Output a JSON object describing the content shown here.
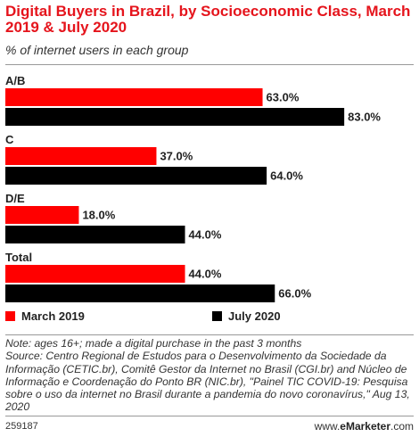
{
  "header": {
    "title": "Digital Buyers in Brazil, by Socioeconomic Class, March 2019 & July 2020",
    "subtitle": "% of internet users in each group"
  },
  "chart_data": {
    "type": "bar",
    "orientation": "horizontal",
    "categories": [
      "A/B",
      "C",
      "D/E",
      "Total"
    ],
    "series": [
      {
        "name": "March 2019",
        "values": [
          63.0,
          37.0,
          18.0,
          44.0
        ],
        "color": "#ff0000"
      },
      {
        "name": "July 2020",
        "values": [
          83.0,
          64.0,
          44.0,
          66.0
        ],
        "color": "#000000"
      }
    ],
    "data_labels": [
      [
        "63.0%",
        "37.0%",
        "18.0%",
        "44.0%"
      ],
      [
        "83.0%",
        "64.0%",
        "44.0%",
        "66.0%"
      ]
    ],
    "xlim": [
      0,
      100
    ],
    "grid": false,
    "legend_position": "bottom"
  },
  "legend": {
    "march_label": "March 2019",
    "july_label": "July 2020"
  },
  "footer": {
    "note_line": "Note: ages 16+; made a digital purchase in the past 3 months",
    "source_line": "Source: Centro Regional de Estudos para o Desenvolvimento da Sociedade da Informação (CETIC.br), Comitê Gestor da Internet no Brasil (CGI.br) and Núcleo de Informação e Coordenação do Ponto BR (NIC.br), \"Painel TIC COVID-19: Pesquisa sobre o uso da internet no Brasil durante a pandemia do novo coronavírus,\" Aug 13, 2020",
    "chart_id": "259187",
    "brand_prefix": "www.",
    "brand_name": "eMarketer",
    "brand_suffix": ".com"
  }
}
